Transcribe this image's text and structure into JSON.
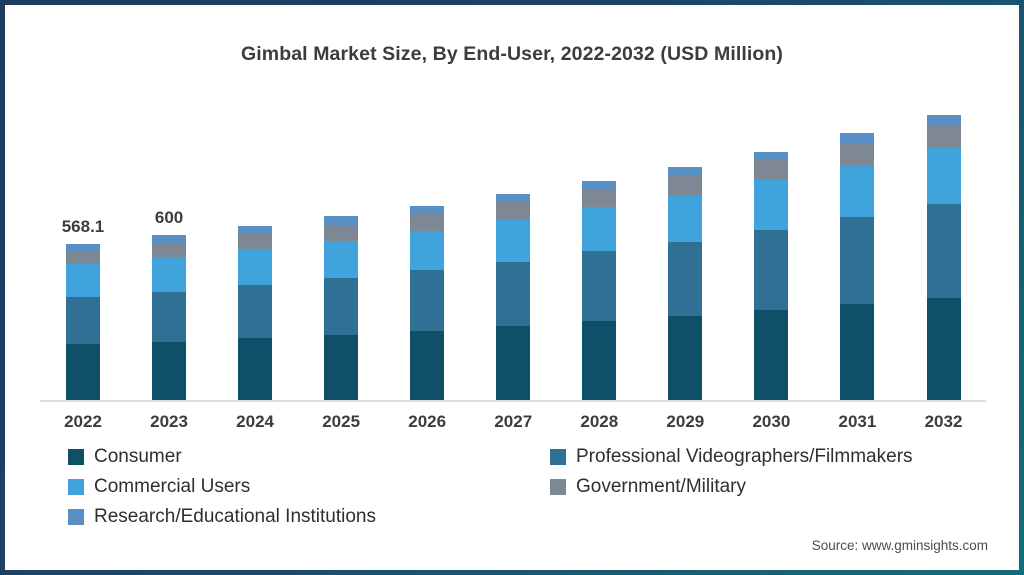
{
  "title": "Gimbal Market Size, By End-User, 2022-2032 (USD Million)",
  "source": "Source: www.gminsights.com",
  "colors": {
    "frame_border_top": "#1e3c5f",
    "frame_border_bottom": "#136d7c",
    "background": "#ffffff",
    "axis_line": "#dcdfe2",
    "text": "#3c3c3c"
  },
  "chart_data": {
    "type": "bar",
    "stacked": true,
    "title": "Gimbal Market Size, By End-User, 2022-2032 (USD Million)",
    "xlabel": "",
    "ylabel": "USD Million",
    "ylim": [
      0,
      1090
    ],
    "grid": false,
    "legend_position": "bottom",
    "categories": [
      "2022",
      "2023",
      "2024",
      "2025",
      "2026",
      "2027",
      "2028",
      "2029",
      "2030",
      "2031",
      "2032"
    ],
    "series": [
      {
        "name": "Consumer",
        "color": "#0f4f68",
        "values": [
          203,
          211,
          224,
          237,
          252,
          268,
          288,
          306,
          327,
          349,
          372
        ]
      },
      {
        "name": "Professional Videographers/Filmmakers",
        "color": "#2f7094",
        "values": [
          171,
          183,
          194,
          206,
          220,
          235,
          252,
          269,
          291,
          315,
          339
        ]
      },
      {
        "name": "Commercial Users",
        "color": "#41a3dc",
        "values": [
          121,
          124,
          130,
          136,
          143,
          151,
          160,
          170,
          181,
          191,
          203
        ]
      },
      {
        "name": "Government/Military",
        "color": "#7e8794",
        "values": [
          46,
          52,
          55,
          58,
          61,
          64,
          68,
          71,
          74,
          78,
          82
        ]
      },
      {
        "name": "Research/Educational Institutions",
        "color": "#5890c6",
        "values": [
          27.1,
          30,
          30,
          30,
          30,
          29,
          29,
          29,
          30,
          36,
          39
        ]
      }
    ],
    "totals": [
      568.1,
      600,
      633,
      667,
      706,
      747,
      797,
      845,
      903,
      969,
      1035
    ],
    "data_labels": [
      "568.1",
      "600",
      "",
      "",
      "",
      "",
      "",
      "",
      "",
      "",
      ""
    ]
  },
  "legend": {
    "columns": [
      [
        "Consumer",
        "Commercial Users",
        "Research/Educational Institutions"
      ],
      [
        "Professional Videographers/Filmmakers",
        "Government/Military"
      ]
    ]
  }
}
